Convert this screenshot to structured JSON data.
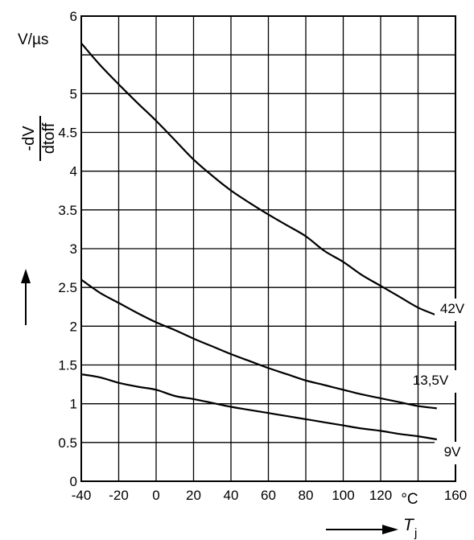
{
  "chart_data": {
    "type": "line",
    "title": "",
    "ylabel_unit": "V/µs",
    "ylabel_num": "-dV",
    "ylabel_den": "dtoff",
    "xlabel_symbol": "T",
    "xlabel_sub": "j",
    "xunit": "°C",
    "xlim": [
      -40,
      160
    ],
    "ylim": [
      0,
      6
    ],
    "grid": true,
    "x_ticks": [
      "-40",
      "-20",
      "0",
      "20",
      "40",
      "60",
      "80",
      "100",
      "120",
      "",
      "160"
    ],
    "y_ticks": [
      "0",
      "0.5",
      "1",
      "1.5",
      "2",
      "2.5",
      "3",
      "3.5",
      "4",
      "4.5",
      "5",
      "",
      "6"
    ],
    "series": [
      {
        "name": "42V",
        "x": [
          -40,
          -30,
          -20,
          -10,
          0,
          10,
          20,
          30,
          40,
          50,
          60,
          70,
          80,
          90,
          100,
          110,
          120,
          130,
          140,
          150
        ],
        "y": [
          5.65,
          5.37,
          5.12,
          4.88,
          4.65,
          4.4,
          4.15,
          3.94,
          3.75,
          3.59,
          3.44,
          3.3,
          3.16,
          2.97,
          2.83,
          2.66,
          2.52,
          2.38,
          2.24,
          2.14
        ]
      },
      {
        "name": "13,5V",
        "x": [
          -40,
          -30,
          -20,
          -10,
          0,
          10,
          20,
          30,
          40,
          50,
          60,
          70,
          80,
          90,
          100,
          110,
          120,
          130,
          140,
          150
        ],
        "y": [
          2.6,
          2.43,
          2.3,
          2.17,
          2.05,
          1.95,
          1.84,
          1.74,
          1.64,
          1.55,
          1.46,
          1.38,
          1.3,
          1.24,
          1.18,
          1.12,
          1.07,
          1.02,
          0.97,
          0.94
        ]
      },
      {
        "name": "9V",
        "x": [
          -40,
          -30,
          -20,
          -10,
          0,
          10,
          20,
          30,
          40,
          50,
          60,
          70,
          80,
          90,
          100,
          110,
          120,
          130,
          140,
          150
        ],
        "y": [
          1.38,
          1.34,
          1.27,
          1.22,
          1.18,
          1.1,
          1.06,
          1.01,
          0.96,
          0.92,
          0.88,
          0.84,
          0.8,
          0.76,
          0.72,
          0.68,
          0.65,
          0.61,
          0.58,
          0.54
        ]
      }
    ]
  }
}
